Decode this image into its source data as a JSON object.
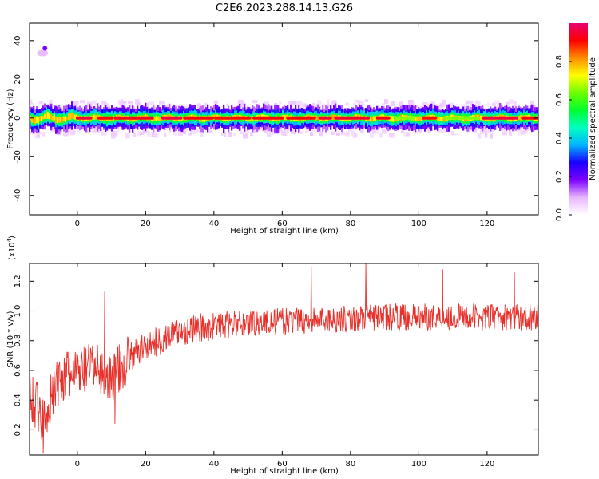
{
  "title": "C2E6.2023.288.14.13.G26",
  "chart_data": [
    {
      "type": "heatmap",
      "xlabel": "Height of straight line (km)",
      "ylabel": "Frequency (Hz)",
      "xlim": [
        -14,
        135
      ],
      "ylim": [
        -50,
        49
      ],
      "xticks": [
        0,
        20,
        40,
        60,
        80,
        100,
        120
      ],
      "yticks": [
        -40,
        -20,
        0,
        20,
        40
      ],
      "ridge_frequency": 0,
      "band_halfwidth_hz": 3,
      "outlier": {
        "x": -9.5,
        "y": 36
      },
      "colorbar": {
        "label": "Normalized spectral amplitude",
        "range": [
          0.0,
          1.0
        ],
        "ticks": [
          0.0,
          0.2,
          0.4,
          0.6,
          0.8
        ],
        "colors": [
          "#ffffff",
          "#e8b4ff",
          "#7b00ff",
          "#1800ff",
          "#00b4ff",
          "#00ffc0",
          "#00ff30",
          "#6eff00",
          "#ffff00",
          "#ff8c00",
          "#ff0000",
          "#e8006e"
        ]
      }
    },
    {
      "type": "line",
      "xlabel": "Height of straight line (km)",
      "ylabel": "SNR (10 * v/v)",
      "scale_label": "(x10",
      "scale_exp": "4",
      "scale_close": ")",
      "xlim": [
        -14,
        135
      ],
      "ylim": [
        0.03,
        1.32
      ],
      "xticks": [
        0,
        20,
        40,
        60,
        80,
        100,
        120
      ],
      "yticks": [
        0.2,
        0.4,
        0.6,
        0.8,
        1.0,
        1.2
      ],
      "color": "#e8302a",
      "trend": [
        {
          "x": -14,
          "y": 0.45
        },
        {
          "x": -10,
          "y": 0.28
        },
        {
          "x": -5,
          "y": 0.55
        },
        {
          "x": 0,
          "y": 0.58
        },
        {
          "x": 5,
          "y": 0.62
        },
        {
          "x": 10,
          "y": 0.55
        },
        {
          "x": 15,
          "y": 0.68
        },
        {
          "x": 20,
          "y": 0.76
        },
        {
          "x": 30,
          "y": 0.86
        },
        {
          "x": 40,
          "y": 0.9
        },
        {
          "x": 50,
          "y": 0.92
        },
        {
          "x": 60,
          "y": 0.93
        },
        {
          "x": 70,
          "y": 0.94
        },
        {
          "x": 80,
          "y": 0.95
        },
        {
          "x": 90,
          "y": 0.96
        },
        {
          "x": 100,
          "y": 0.96
        },
        {
          "x": 110,
          "y": 0.96
        },
        {
          "x": 120,
          "y": 0.96
        },
        {
          "x": 135,
          "y": 0.96
        }
      ],
      "peaks": [
        {
          "x": 8,
          "y": 1.13
        },
        {
          "x": 68.5,
          "y": 1.3
        },
        {
          "x": 84.5,
          "y": 1.32
        },
        {
          "x": 107,
          "y": 1.28
        },
        {
          "x": 128,
          "y": 1.26
        },
        {
          "x": -10,
          "y": 0.04
        },
        {
          "x": 11,
          "y": 0.24
        }
      ]
    }
  ]
}
